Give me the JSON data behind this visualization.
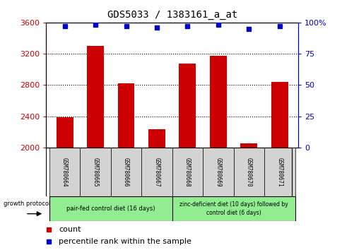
{
  "title": "GDS5033 / 1383161_a_at",
  "samples": [
    "GSM780664",
    "GSM780665",
    "GSM780666",
    "GSM780667",
    "GSM780668",
    "GSM780669",
    "GSM780670",
    "GSM780671"
  ],
  "counts": [
    2390,
    3300,
    2820,
    2230,
    3070,
    3170,
    2050,
    2840
  ],
  "percentile_ranks": [
    97,
    98,
    97,
    96,
    97,
    98,
    95,
    97
  ],
  "ylim_left": [
    2000,
    3600
  ],
  "ylim_right": [
    0,
    100
  ],
  "yticks_left": [
    2000,
    2400,
    2800,
    3200,
    3600
  ],
  "yticks_right": [
    0,
    25,
    50,
    75,
    100
  ],
  "bar_color": "#cc0000",
  "dot_color": "#0000cc",
  "bar_width": 0.55,
  "baseline": 2000,
  "group1_label": "pair-fed control diet (16 days)",
  "group2_label": "zinc-deficient diet (10 days) followed by\ncontrol diet (6 days)",
  "group1_indices": [
    0,
    1,
    2,
    3
  ],
  "group2_indices": [
    4,
    5,
    6,
    7
  ],
  "group1_color": "#90ee90",
  "group2_color": "#90ee90",
  "protocol_label": "growth protocol",
  "legend_count_label": "count",
  "legend_pct_label": "percentile rank within the sample",
  "left_axis_color": "#cc0000",
  "right_axis_color": "#0000cc",
  "sample_box_color": "#d3d3d3",
  "fig_width": 4.85,
  "fig_height": 3.54,
  "dpi": 100
}
